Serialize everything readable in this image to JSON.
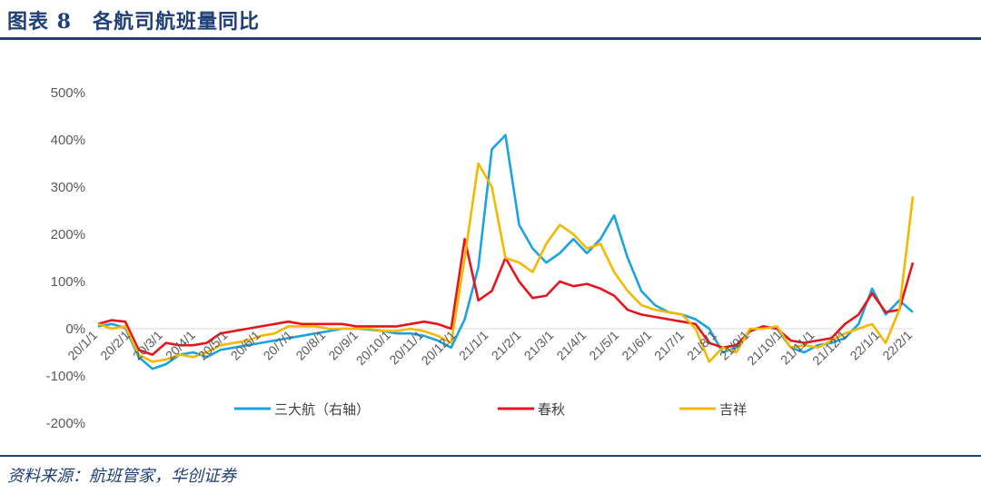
{
  "header": {
    "title": "图表 8　各航司航班量同比"
  },
  "footer": {
    "source": "资料来源：航班管家，华创证券"
  },
  "chart_data": {
    "type": "line",
    "title": "",
    "xlabel": "",
    "ylabel": "",
    "ylim": [
      -2.0,
      5.0
    ],
    "y_ticks": [
      -2.0,
      -1.0,
      0.0,
      1.0,
      2.0,
      3.0,
      4.0,
      5.0
    ],
    "y_tick_labels": [
      "-200%",
      "-100%",
      "0%",
      "100%",
      "200%",
      "300%",
      "400%",
      "500%"
    ],
    "x_tick_labels": [
      "20/1/1",
      "20/2/1",
      "20/3/1",
      "20/4/1",
      "20/5/1",
      "20/6/1",
      "20/7/1",
      "20/8/1",
      "20/9/1",
      "20/10/1",
      "20/11/1",
      "20/12/1",
      "21/1/1",
      "21/2/1",
      "21/3/1",
      "21/4/1",
      "21/5/1",
      "21/6/1",
      "21/7/1",
      "21/8/1",
      "21/9/1",
      "21/10/1",
      "21/11/1",
      "21/12/1",
      "22/1/1",
      "22/2/1"
    ],
    "grid": false,
    "legend_position": "bottom",
    "x": [
      "20/1/1",
      "20/1/15",
      "20/2/1",
      "20/2/15",
      "20/3/1",
      "20/3/15",
      "20/4/1",
      "20/4/15",
      "20/5/1",
      "20/5/15",
      "20/6/1",
      "20/6/15",
      "20/7/1",
      "20/7/15",
      "20/8/1",
      "20/8/15",
      "20/9/1",
      "20/9/15",
      "20/10/1",
      "20/10/15",
      "20/11/1",
      "20/11/15",
      "20/12/1",
      "20/12/15",
      "21/1/1",
      "21/1/15",
      "21/2/1",
      "21/2/10",
      "21/2/20",
      "21/3/1",
      "21/3/5",
      "21/3/10",
      "21/3/15",
      "21/3/20",
      "21/4/1",
      "21/4/10",
      "21/4/20",
      "21/5/1",
      "21/5/10",
      "21/5/20",
      "21/6/1",
      "21/6/15",
      "21/7/1",
      "21/7/15",
      "21/8/1",
      "21/8/10",
      "21/8/20",
      "21/9/1",
      "21/9/15",
      "21/10/1",
      "21/10/15",
      "21/11/1",
      "21/11/15",
      "21/12/1",
      "21/12/15",
      "22/1/1",
      "22/1/10",
      "22/1/20",
      "22/2/1",
      "22/2/5",
      "22/2/8"
    ],
    "series": [
      {
        "name": "三大航（右轴）",
        "color": "#1aa3e0",
        "values": [
          0.05,
          0.1,
          0.02,
          -0.6,
          -0.85,
          -0.75,
          -0.55,
          -0.5,
          -0.6,
          -0.45,
          -0.4,
          -0.35,
          -0.3,
          -0.25,
          -0.2,
          -0.15,
          -0.1,
          -0.05,
          0.0,
          0.0,
          -0.02,
          -0.05,
          -0.1,
          -0.1,
          -0.15,
          -0.25,
          -0.4,
          0.2,
          1.3,
          3.8,
          4.1,
          2.2,
          1.7,
          1.4,
          1.6,
          1.9,
          1.6,
          1.9,
          2.4,
          1.5,
          0.8,
          0.5,
          0.35,
          0.3,
          0.2,
          0.0,
          -0.5,
          -0.4,
          -0.05,
          0.05,
          0.0,
          -0.4,
          -0.5,
          -0.35,
          -0.3,
          -0.2,
          0.1,
          0.85,
          0.3,
          0.6,
          0.35
        ]
      },
      {
        "name": "春秋",
        "color": "#e8141b",
        "values": [
          0.1,
          0.18,
          0.15,
          -0.45,
          -0.55,
          -0.3,
          -0.35,
          -0.35,
          -0.3,
          -0.1,
          -0.05,
          0.0,
          0.05,
          0.1,
          0.15,
          0.1,
          0.1,
          0.1,
          0.1,
          0.05,
          0.05,
          0.05,
          0.05,
          0.1,
          0.15,
          0.1,
          0.0,
          1.9,
          0.6,
          0.8,
          1.5,
          1.0,
          0.65,
          0.7,
          1.0,
          0.9,
          0.95,
          0.85,
          0.7,
          0.4,
          0.3,
          0.25,
          0.2,
          0.15,
          0.1,
          -0.3,
          -0.4,
          -0.35,
          -0.05,
          0.05,
          0.0,
          -0.25,
          -0.3,
          -0.25,
          -0.2,
          0.1,
          0.3,
          0.75,
          0.35,
          0.4,
          1.4
        ]
      },
      {
        "name": "吉祥",
        "color": "#f5b800",
        "values": [
          0.1,
          0.0,
          0.05,
          -0.55,
          -0.7,
          -0.65,
          -0.55,
          -0.6,
          -0.5,
          -0.35,
          -0.3,
          -0.25,
          -0.15,
          -0.1,
          0.05,
          0.05,
          0.05,
          0.0,
          0.0,
          0.0,
          0.0,
          -0.05,
          -0.05,
          0.0,
          -0.05,
          -0.15,
          -0.3,
          1.5,
          3.5,
          3.0,
          1.5,
          1.4,
          1.2,
          1.8,
          2.2,
          2.0,
          1.7,
          1.8,
          1.2,
          0.8,
          0.5,
          0.4,
          0.35,
          0.3,
          0.0,
          -0.7,
          -0.4,
          -0.5,
          0.0,
          0.0,
          0.05,
          -0.4,
          -0.35,
          -0.4,
          -0.25,
          -0.1,
          0.0,
          0.1,
          -0.3,
          0.4,
          2.8
        ]
      }
    ]
  }
}
